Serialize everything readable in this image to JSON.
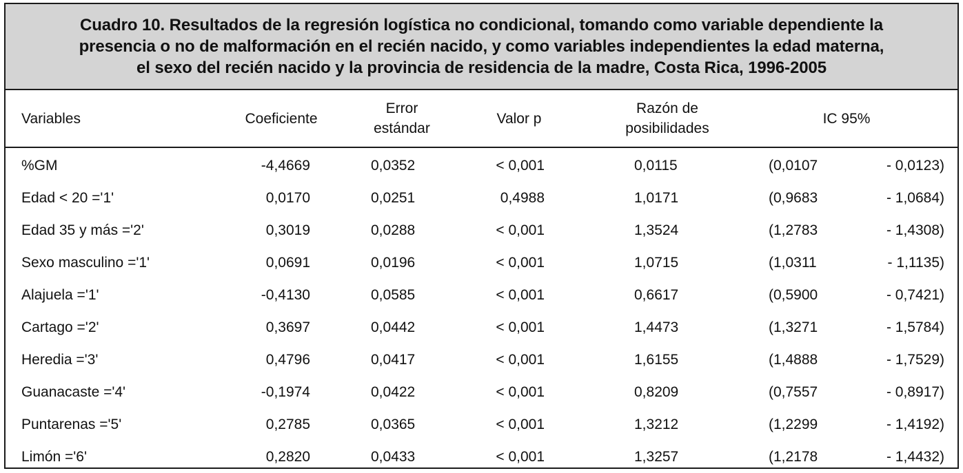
{
  "caption": {
    "line1": "Cuadro 10. Resultados de la regresión logística no condicional, tomando como variable dependiente la",
    "line2": "presencia o no de malformación en el recién nacido, y como variables independientes la edad materna,",
    "line3": "el sexo del recién nacido y la provincia de residencia de la madre, Costa Rica, 1996-2005"
  },
  "headers": {
    "variables": "Variables",
    "coeficiente": "Coeficiente",
    "error_l1": "Error",
    "error_l2": "estándar",
    "valor_p": "Valor p",
    "razon_l1": "Razón de",
    "razon_l2": "posibilidades",
    "ic": "IC 95%"
  },
  "rows": [
    {
      "variable": "%GM",
      "coef": "-4,4669",
      "se": "0,0352",
      "p": "< 0,001",
      "or": "0,0115",
      "ci_low": "(0,0107",
      "ci_high": "- 0,0123)"
    },
    {
      "variable": "Edad < 20  ='1'",
      "coef": "0,0170",
      "se": "0,0251",
      "p": "0,4988",
      "or": "1,0171",
      "ci_low": "(0,9683",
      "ci_high": "- 1,0684)"
    },
    {
      "variable": "Edad 35 y más ='2'",
      "coef": "0,3019",
      "se": "0,0288",
      "p": "< 0,001",
      "or": "1,3524",
      "ci_low": "(1,2783",
      "ci_high": "- 1,4308)"
    },
    {
      "variable": "Sexo masculino ='1'",
      "coef": "0,0691",
      "se": "0,0196",
      "p": "< 0,001",
      "or": "1,0715",
      "ci_low": "(1,0311",
      "ci_high": "- 1,1135)"
    },
    {
      "variable": "Alajuela ='1'",
      "coef": "-0,4130",
      "se": "0,0585",
      "p": "< 0,001",
      "or": "0,6617",
      "ci_low": "(0,5900",
      "ci_high": "- 0,7421)"
    },
    {
      "variable": "Cartago ='2'",
      "coef": "0,3697",
      "se": "0,0442",
      "p": "< 0,001",
      "or": "1,4473",
      "ci_low": "(1,3271",
      "ci_high": "- 1,5784)"
    },
    {
      "variable": "Heredia ='3'",
      "coef": "0,4796",
      "se": "0,0417",
      "p": "< 0,001",
      "or": "1,6155",
      "ci_low": "(1,4888",
      "ci_high": "- 1,7529)"
    },
    {
      "variable": "Guanacaste ='4'",
      "coef": "-0,1974",
      "se": "0,0422",
      "p": "< 0,001",
      "or": "0,8209",
      "ci_low": "(0,7557",
      "ci_high": "- 0,8917)"
    },
    {
      "variable": "Puntarenas ='5'",
      "coef": "0,2785",
      "se": "0,0365",
      "p": "< 0,001",
      "or": "1,3212",
      "ci_low": "(1,2299",
      "ci_high": "- 1,4192)"
    },
    {
      "variable": "Limón ='6'",
      "coef": "0,2820",
      "se": "0,0433",
      "p": "< 0,001",
      "or": "1,3257",
      "ci_low": "(1,2178",
      "ci_high": "- 1,4432)"
    }
  ]
}
